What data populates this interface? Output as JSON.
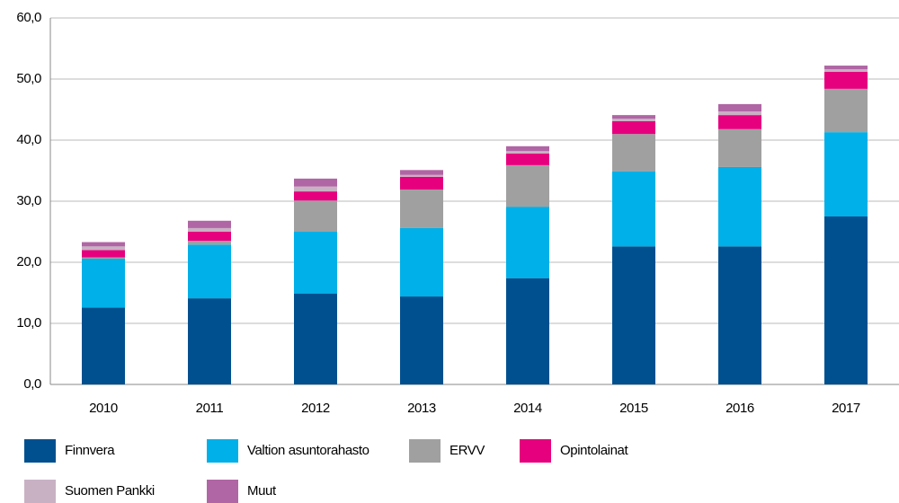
{
  "chart_data": {
    "type": "stacked_bar",
    "categories": [
      "2010",
      "2011",
      "2012",
      "2013",
      "2014",
      "2015",
      "2016",
      "2017"
    ],
    "series": [
      {
        "name": "Finnvera",
        "color": "#00508f",
        "values": [
          12.6,
          14.1,
          14.9,
          14.4,
          17.4,
          22.6,
          22.6,
          27.5
        ]
      },
      {
        "name": "Valtion asuntorahasto",
        "color": "#00b0e8",
        "values": [
          8.0,
          8.8,
          10.1,
          11.2,
          11.7,
          12.3,
          13.0,
          13.8
        ]
      },
      {
        "name": "ERVV",
        "color": "#a0a0a0",
        "values": [
          0.2,
          0.6,
          5.1,
          6.3,
          6.8,
          6.1,
          6.2,
          7.1
        ]
      },
      {
        "name": "Opintolainat",
        "color": "#e6007e",
        "values": [
          1.2,
          1.5,
          1.5,
          2.1,
          1.9,
          2.1,
          2.3,
          2.8
        ]
      },
      {
        "name": "Suomen Pankki",
        "color": "#c9b1c4",
        "values": [
          0.6,
          0.6,
          0.8,
          0.3,
          0.4,
          0.4,
          0.6,
          0.4
        ]
      },
      {
        "name": "Muut",
        "color": "#b066a4",
        "values": [
          0.7,
          1.2,
          1.3,
          0.8,
          0.8,
          0.6,
          1.2,
          0.6
        ]
      }
    ],
    "ylim": [
      0,
      60
    ],
    "yticks": [
      {
        "value": 0,
        "label": "0,0"
      },
      {
        "value": 10,
        "label": "10,0"
      },
      {
        "value": 20,
        "label": "20,0"
      },
      {
        "value": 30,
        "label": "30,0"
      },
      {
        "value": 40,
        "label": "40,0"
      },
      {
        "value": 50,
        "label": "50,0"
      },
      {
        "value": 60,
        "label": "60,0"
      }
    ],
    "grid": true
  }
}
